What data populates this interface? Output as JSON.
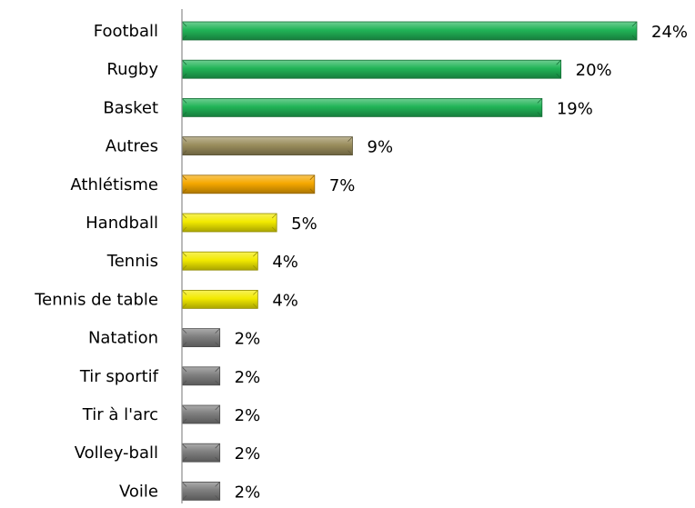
{
  "chart_data": {
    "type": "bar",
    "orientation": "horizontal",
    "categories": [
      "Football",
      "Rugby",
      "Basket",
      "Autres",
      "Athlétisme",
      "Handball",
      "Tennis",
      "Tennis de table",
      "Natation",
      "Tir sportif",
      "Tir à l'arc",
      "Volley-ball",
      "Voile"
    ],
    "values": [
      24,
      20,
      19,
      9,
      7,
      5,
      4,
      4,
      2,
      2,
      2,
      2,
      2
    ],
    "value_labels": [
      "24%",
      "20%",
      "19%",
      "9%",
      "7%",
      "5%",
      "4%",
      "4%",
      "2%",
      "2%",
      "2%",
      "2%",
      "2%"
    ],
    "bar_colors": [
      "#21b457",
      "#21b457",
      "#21b457",
      "#9a8d5c",
      "#f5a800",
      "#f2ea00",
      "#f2ea00",
      "#f2ea00",
      "#7f7f7f",
      "#7f7f7f",
      "#7f7f7f",
      "#7f7f7f",
      "#7f7f7f"
    ],
    "title": "",
    "xlabel": "",
    "ylabel": "",
    "xlim": [
      0,
      24
    ],
    "grid": false,
    "legend": "none"
  }
}
